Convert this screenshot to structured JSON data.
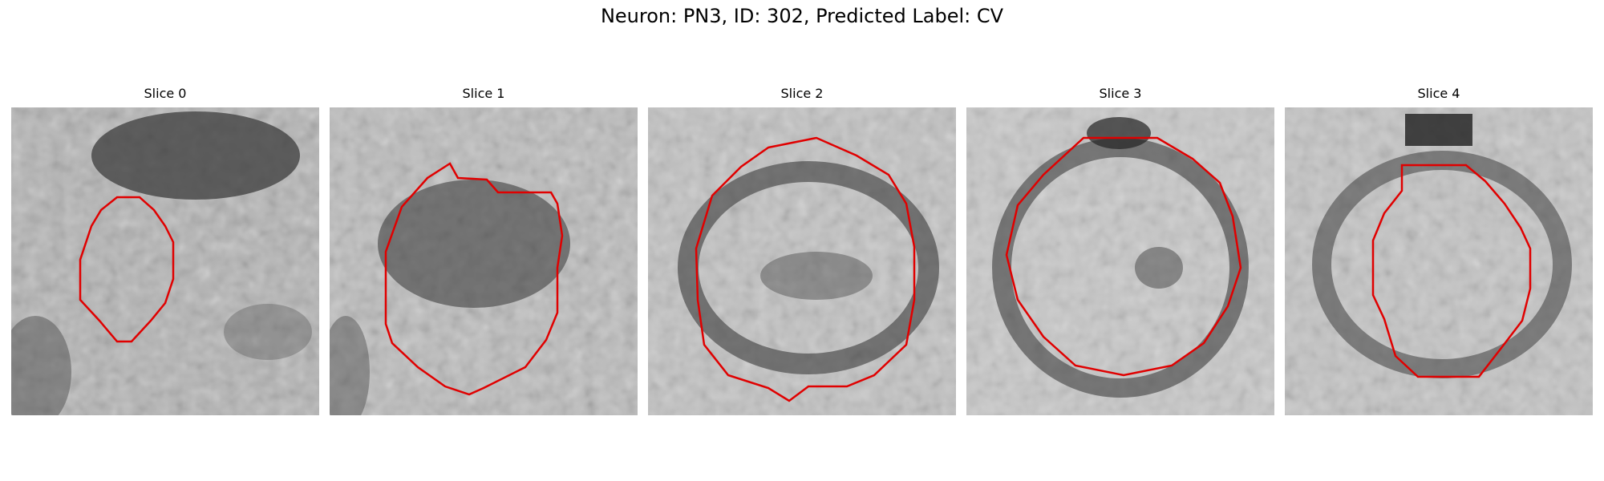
{
  "figure": {
    "title": "Neuron: PN3, ID: 302, Predicted Label: CV"
  },
  "panels": [
    {
      "title": "Slice 0",
      "contour_color": "#e00000"
    },
    {
      "title": "Slice 1",
      "contour_color": "#e00000"
    },
    {
      "title": "Slice 2",
      "contour_color": "#e00000"
    },
    {
      "title": "Slice 3",
      "contour_color": "#e00000"
    },
    {
      "title": "Slice 4",
      "contour_color": "#e00000"
    }
  ]
}
